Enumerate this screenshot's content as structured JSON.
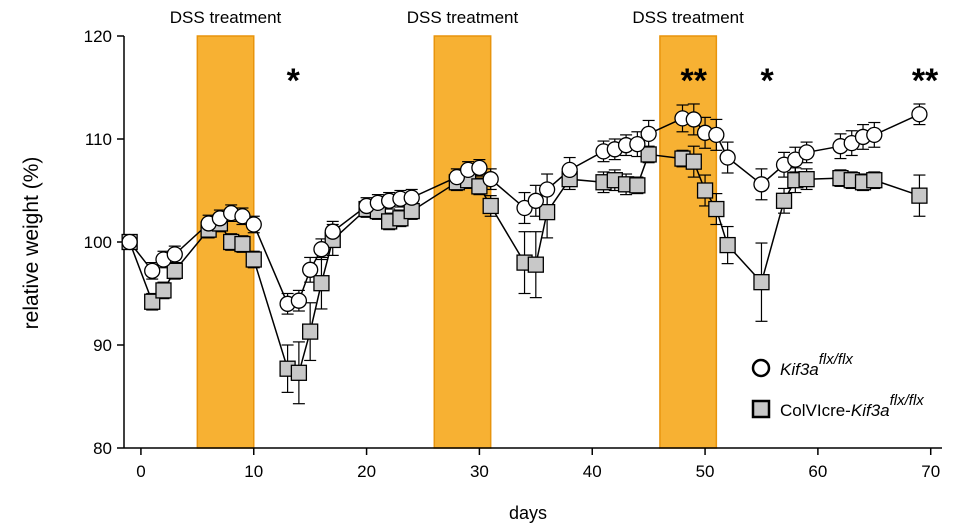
{
  "chart_data": {
    "type": "line",
    "xlabel": "days",
    "ylabel": "relative weight (%)",
    "xlim": [
      -1.5,
      71
    ],
    "ylim": [
      80,
      120
    ],
    "xticks": [
      0,
      10,
      20,
      30,
      40,
      50,
      60,
      70
    ],
    "yticks": [
      80,
      90,
      100,
      110,
      120
    ],
    "grid": false,
    "legend_position": "bottom-right",
    "colors": {
      "band": "#F7B133",
      "band_edge": "#E8940C",
      "square_fill": "#C8C8C8",
      "circle_fill": "#FFFFFF",
      "line": "#000000"
    },
    "treatment_bands": [
      {
        "label": "DSS treatment",
        "start": 5,
        "end": 10
      },
      {
        "label": "DSS treatment",
        "start": 26,
        "end": 31
      },
      {
        "label": "DSS treatment",
        "start": 46,
        "end": 51
      }
    ],
    "annotations": [
      {
        "text": "*",
        "x": 13.5
      },
      {
        "text": "**",
        "x": 49
      },
      {
        "text": "*",
        "x": 55.5
      },
      {
        "text": "**",
        "x": 69.5
      }
    ],
    "series": [
      {
        "name": "Kif3a",
        "name_sup": "flx/flx",
        "marker": "circle",
        "x": [
          -1,
          1,
          2,
          3,
          6,
          7,
          8,
          9,
          10,
          13,
          14,
          15,
          16,
          17,
          20,
          21,
          22,
          23,
          24,
          28,
          29,
          30,
          31,
          34,
          35,
          36,
          38,
          41,
          42,
          43,
          44,
          45,
          48,
          49,
          50,
          51,
          52,
          55,
          57,
          58,
          59,
          62,
          63,
          64,
          65,
          69
        ],
        "y": [
          100,
          97.2,
          98.3,
          98.8,
          101.8,
          102.3,
          102.8,
          102.5,
          101.7,
          94.0,
          94.3,
          97.3,
          99.3,
          101.0,
          103.5,
          103.8,
          104.0,
          104.2,
          104.3,
          106.3,
          107.0,
          107.2,
          106.1,
          103.3,
          104.0,
          105.1,
          107.0,
          108.8,
          109.0,
          109.4,
          109.5,
          110.5,
          112.0,
          111.9,
          110.6,
          110.4,
          108.2,
          105.6,
          107.5,
          108.0,
          108.7,
          109.3,
          109.6,
          110.2,
          110.4,
          112.4
        ],
        "err": [
          0.5,
          0.8,
          0.8,
          0.8,
          0.8,
          0.8,
          0.8,
          0.8,
          0.8,
          1.0,
          1.0,
          1.2,
          1.0,
          1.0,
          0.8,
          0.8,
          0.8,
          0.8,
          0.8,
          0.8,
          0.8,
          0.8,
          1.0,
          1.5,
          1.5,
          1.5,
          1.2,
          1.0,
          1.0,
          1.0,
          1.2,
          1.3,
          1.3,
          1.5,
          1.5,
          1.5,
          1.5,
          1.5,
          1.2,
          1.2,
          1.0,
          1.2,
          1.2,
          1.2,
          1.2,
          1.0
        ]
      },
      {
        "name": "ColVIcre-",
        "name_italic": "Kif3a",
        "name_sup": "flx/flx",
        "marker": "square",
        "x": [
          -1,
          1,
          2,
          3,
          6,
          7,
          8,
          9,
          10,
          13,
          14,
          15,
          16,
          17,
          20,
          21,
          22,
          23,
          24,
          28,
          29,
          30,
          31,
          34,
          35,
          36,
          38,
          41,
          42,
          43,
          44,
          45,
          48,
          49,
          50,
          51,
          52,
          55,
          57,
          58,
          59,
          62,
          63,
          64,
          65,
          69
        ],
        "y": [
          100,
          94.2,
          95.3,
          97.2,
          101.2,
          101.8,
          100.0,
          99.8,
          98.3,
          87.7,
          87.3,
          91.3,
          96.0,
          100.2,
          103.2,
          103.0,
          102.0,
          102.3,
          103.0,
          105.8,
          106.0,
          105.4,
          103.5,
          98.0,
          97.8,
          102.9,
          106.1,
          105.8,
          106.0,
          105.6,
          105.5,
          108.5,
          108.1,
          107.8,
          105.0,
          103.2,
          99.7,
          96.1,
          104.0,
          106.0,
          106.1,
          106.2,
          106.0,
          105.8,
          106.0,
          104.5
        ],
        "err": [
          0.5,
          0.8,
          0.8,
          0.8,
          0.8,
          0.8,
          0.8,
          0.8,
          0.8,
          2.3,
          3.0,
          2.8,
          2.5,
          1.5,
          0.8,
          0.8,
          0.8,
          0.8,
          0.8,
          0.8,
          0.8,
          0.8,
          1.0,
          3.0,
          3.2,
          2.5,
          1.0,
          1.0,
          1.0,
          1.0,
          0.8,
          0.8,
          0.8,
          1.5,
          1.5,
          1.5,
          1.8,
          3.8,
          1.2,
          1.2,
          1.0,
          0.8,
          0.8,
          0.8,
          0.8,
          2.0
        ]
      }
    ]
  }
}
